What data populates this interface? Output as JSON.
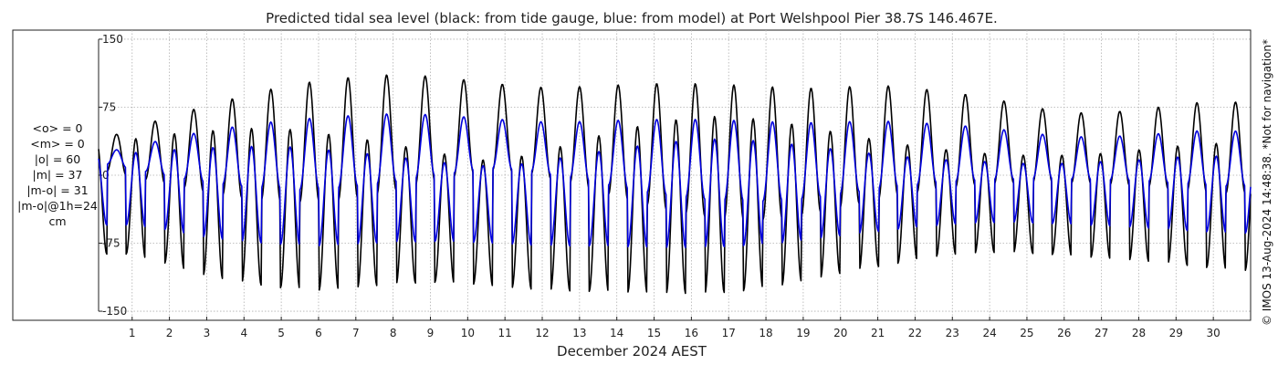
{
  "chart_data": {
    "type": "line",
    "title": "Predicted tidal sea level (black: from tide gauge, blue: from model) at Port Welshpool Pier 38.7S 146.467E.",
    "xlabel": "December 2024 AEST",
    "ylabel": "",
    "xlim": [
      0.1,
      31
    ],
    "ylim": [
      -160,
      160
    ],
    "x_ticks": [
      1,
      2,
      3,
      4,
      5,
      6,
      7,
      8,
      9,
      10,
      11,
      12,
      13,
      14,
      15,
      16,
      17,
      18,
      19,
      20,
      21,
      22,
      23,
      24,
      25,
      26,
      27,
      28,
      29,
      30
    ],
    "y_ticks": [
      150,
      75,
      0,
      -75,
      -150
    ],
    "grid": true,
    "series": [
      {
        "name": "from tide gauge",
        "color": "#000000",
        "wave": {
          "period_days": 0.5175,
          "phase_days": 0.58
        },
        "high_peaks": [
          {
            "day": 0.58,
            "value": 45
          },
          {
            "day": 1.08,
            "value": 53
          },
          {
            "day": 2.12,
            "value": 66
          },
          {
            "day": 3.15,
            "value": 79
          },
          {
            "day": 4.18,
            "value": 89
          },
          {
            "day": 5.2,
            "value": 100
          },
          {
            "day": 6.25,
            "value": 105
          },
          {
            "day": 7.28,
            "value": 110
          },
          {
            "day": 8.3,
            "value": 111
          },
          {
            "day": 9.35,
            "value": 108
          },
          {
            "day": 10.38,
            "value": 103
          },
          {
            "day": 11.4,
            "value": 98
          },
          {
            "day": 12.45,
            "value": 96
          },
          {
            "day": 13.48,
            "value": 99
          },
          {
            "day": 14.5,
            "value": 100
          },
          {
            "day": 15.55,
            "value": 102
          },
          {
            "day": 16.58,
            "value": 100
          },
          {
            "day": 17.6,
            "value": 99
          },
          {
            "day": 18.65,
            "value": 96
          },
          {
            "day": 19.68,
            "value": 96
          },
          {
            "day": 20.7,
            "value": 99
          },
          {
            "day": 21.72,
            "value": 98
          },
          {
            "day": 22.75,
            "value": 92
          },
          {
            "day": 23.8,
            "value": 87
          },
          {
            "day": 24.82,
            "value": 78
          },
          {
            "day": 25.85,
            "value": 70
          },
          {
            "day": 26.88,
            "value": 68
          },
          {
            "day": 27.9,
            "value": 72
          },
          {
            "day": 28.95,
            "value": 77
          },
          {
            "day": 29.98,
            "value": 82
          },
          {
            "day": 30.9,
            "value": 80
          }
        ],
        "low_troughs": [
          {
            "day": 0.85,
            "value": -87
          },
          {
            "day": 1.88,
            "value": -97
          },
          {
            "day": 2.9,
            "value": -110
          },
          {
            "day": 3.92,
            "value": -118
          },
          {
            "day": 4.95,
            "value": -124
          },
          {
            "day": 5.98,
            "value": -127
          },
          {
            "day": 7.0,
            "value": -124
          },
          {
            "day": 8.05,
            "value": -120
          },
          {
            "day": 9.08,
            "value": -118
          },
          {
            "day": 10.1,
            "value": -120
          },
          {
            "day": 11.12,
            "value": -124
          },
          {
            "day": 12.15,
            "value": -127
          },
          {
            "day": 13.18,
            "value": -128
          },
          {
            "day": 14.22,
            "value": -129
          },
          {
            "day": 15.25,
            "value": -130
          },
          {
            "day": 16.28,
            "value": -131
          },
          {
            "day": 17.3,
            "value": -128
          },
          {
            "day": 18.32,
            "value": -122
          },
          {
            "day": 19.35,
            "value": -114
          },
          {
            "day": 20.38,
            "value": -105
          },
          {
            "day": 21.42,
            "value": -98
          },
          {
            "day": 22.45,
            "value": -90
          },
          {
            "day": 23.48,
            "value": -86
          },
          {
            "day": 24.5,
            "value": -85
          },
          {
            "day": 25.52,
            "value": -87
          },
          {
            "day": 26.55,
            "value": -90
          },
          {
            "day": 27.58,
            "value": -93
          },
          {
            "day": 28.6,
            "value": -96
          },
          {
            "day": 29.62,
            "value": -101
          },
          {
            "day": 30.65,
            "value": -105
          }
        ],
        "low_highs": [
          {
            "day": 0.33,
            "value": 35
          },
          {
            "day": 1.35,
            "value": 42
          },
          {
            "day": 2.38,
            "value": 47
          },
          {
            "day": 3.4,
            "value": 50
          },
          {
            "day": 4.42,
            "value": 52
          },
          {
            "day": 5.45,
            "value": 50
          },
          {
            "day": 6.48,
            "value": 44
          },
          {
            "day": 7.5,
            "value": 38
          },
          {
            "day": 8.52,
            "value": 30
          },
          {
            "day": 9.55,
            "value": 22
          },
          {
            "day": 10.58,
            "value": 16
          },
          {
            "day": 11.6,
            "value": 22
          },
          {
            "day": 12.62,
            "value": 33
          },
          {
            "day": 13.65,
            "value": 45
          },
          {
            "day": 14.68,
            "value": 55
          },
          {
            "day": 15.7,
            "value": 62
          },
          {
            "day": 16.72,
            "value": 65
          },
          {
            "day": 17.75,
            "value": 62
          },
          {
            "day": 18.78,
            "value": 56
          },
          {
            "day": 19.8,
            "value": 48
          },
          {
            "day": 20.82,
            "value": 40
          },
          {
            "day": 21.85,
            "value": 33
          },
          {
            "day": 22.88,
            "value": 28
          },
          {
            "day": 23.9,
            "value": 24
          },
          {
            "day": 24.92,
            "value": 22
          },
          {
            "day": 25.95,
            "value": 22
          },
          {
            "day": 26.98,
            "value": 24
          },
          {
            "day": 28.0,
            "value": 28
          },
          {
            "day": 29.02,
            "value": 32
          },
          {
            "day": 30.05,
            "value": 35
          }
        ],
        "high_lows": [
          {
            "day": 0.35,
            "value": 4
          },
          {
            "day": 1.38,
            "value": -5
          },
          {
            "day": 2.4,
            "value": -14
          },
          {
            "day": 3.42,
            "value": -22
          },
          {
            "day": 4.45,
            "value": -28
          },
          {
            "day": 5.48,
            "value": -30
          },
          {
            "day": 6.5,
            "value": -28
          },
          {
            "day": 7.52,
            "value": -22
          },
          {
            "day": 8.55,
            "value": -12
          },
          {
            "day": 9.58,
            "value": -2
          },
          {
            "day": 10.6,
            "value": 6
          },
          {
            "day": 11.62,
            "value": 2
          },
          {
            "day": 12.65,
            "value": -8
          },
          {
            "day": 13.68,
            "value": -20
          },
          {
            "day": 14.7,
            "value": -32
          },
          {
            "day": 15.72,
            "value": -42
          },
          {
            "day": 16.75,
            "value": -48
          },
          {
            "day": 17.78,
            "value": -50
          },
          {
            "day": 18.8,
            "value": -46
          },
          {
            "day": 19.82,
            "value": -38
          },
          {
            "day": 20.85,
            "value": -28
          },
          {
            "day": 21.88,
            "value": -20
          },
          {
            "day": 22.9,
            "value": -14
          },
          {
            "day": 23.92,
            "value": -10
          },
          {
            "day": 24.95,
            "value": -8
          },
          {
            "day": 25.98,
            "value": -8
          },
          {
            "day": 27.0,
            "value": -10
          },
          {
            "day": 28.02,
            "value": -12
          },
          {
            "day": 29.05,
            "value": -16
          },
          {
            "day": 30.08,
            "value": -20
          }
        ]
      },
      {
        "name": "from model",
        "color": "#0000dd",
        "wave": {
          "period_days": 0.5175,
          "phase_days": 0.58
        },
        "high_peaks": [
          {
            "day": 0.58,
            "value": 28
          },
          {
            "day": 1.08,
            "value": 32
          },
          {
            "day": 2.12,
            "value": 42
          },
          {
            "day": 3.15,
            "value": 50
          },
          {
            "day": 4.18,
            "value": 56
          },
          {
            "day": 5.2,
            "value": 61
          },
          {
            "day": 6.25,
            "value": 64
          },
          {
            "day": 7.28,
            "value": 67
          },
          {
            "day": 8.3,
            "value": 68
          },
          {
            "day": 9.35,
            "value": 66
          },
          {
            "day": 10.38,
            "value": 63
          },
          {
            "day": 11.4,
            "value": 60
          },
          {
            "day": 12.45,
            "value": 58
          },
          {
            "day": 13.48,
            "value": 60
          },
          {
            "day": 14.5,
            "value": 61
          },
          {
            "day": 15.55,
            "value": 62
          },
          {
            "day": 16.58,
            "value": 61
          },
          {
            "day": 17.6,
            "value": 60
          },
          {
            "day": 18.65,
            "value": 58
          },
          {
            "day": 19.68,
            "value": 58
          },
          {
            "day": 20.7,
            "value": 60
          },
          {
            "day": 21.72,
            "value": 59
          },
          {
            "day": 22.75,
            "value": 56
          },
          {
            "day": 23.8,
            "value": 53
          },
          {
            "day": 24.82,
            "value": 48
          },
          {
            "day": 25.85,
            "value": 43
          },
          {
            "day": 26.88,
            "value": 42
          },
          {
            "day": 27.9,
            "value": 44
          },
          {
            "day": 28.95,
            "value": 47
          },
          {
            "day": 29.98,
            "value": 50
          },
          {
            "day": 30.9,
            "value": 48
          }
        ],
        "low_troughs": [
          {
            "day": 0.85,
            "value": -55
          },
          {
            "day": 1.88,
            "value": -60
          },
          {
            "day": 2.9,
            "value": -68
          },
          {
            "day": 3.92,
            "value": -73
          },
          {
            "day": 4.95,
            "value": -76
          },
          {
            "day": 5.98,
            "value": -78
          },
          {
            "day": 7.0,
            "value": -76
          },
          {
            "day": 8.05,
            "value": -74
          },
          {
            "day": 9.08,
            "value": -73
          },
          {
            "day": 10.1,
            "value": -74
          },
          {
            "day": 11.12,
            "value": -76
          },
          {
            "day": 12.15,
            "value": -78
          },
          {
            "day": 13.18,
            "value": -78
          },
          {
            "day": 14.22,
            "value": -79
          },
          {
            "day": 15.25,
            "value": -80
          },
          {
            "day": 16.28,
            "value": -80
          },
          {
            "day": 17.3,
            "value": -78
          },
          {
            "day": 18.32,
            "value": -75
          },
          {
            "day": 19.35,
            "value": -70
          },
          {
            "day": 20.38,
            "value": -65
          },
          {
            "day": 21.42,
            "value": -60
          },
          {
            "day": 22.45,
            "value": -56
          },
          {
            "day": 23.48,
            "value": -53
          },
          {
            "day": 24.5,
            "value": -52
          },
          {
            "day": 25.52,
            "value": -53
          },
          {
            "day": 26.55,
            "value": -55
          },
          {
            "day": 27.58,
            "value": -57
          },
          {
            "day": 28.6,
            "value": -59
          },
          {
            "day": 29.62,
            "value": -62
          },
          {
            "day": 30.65,
            "value": -64
          }
        ],
        "low_highs": [
          {
            "day": 0.33,
            "value": 22
          },
          {
            "day": 1.35,
            "value": 26
          },
          {
            "day": 2.38,
            "value": 29
          },
          {
            "day": 3.4,
            "value": 31
          },
          {
            "day": 4.42,
            "value": 32
          },
          {
            "day": 5.45,
            "value": 31
          },
          {
            "day": 6.48,
            "value": 27
          },
          {
            "day": 7.5,
            "value": 23
          },
          {
            "day": 8.52,
            "value": 18
          },
          {
            "day": 9.55,
            "value": 13
          },
          {
            "day": 10.58,
            "value": 10
          },
          {
            "day": 11.6,
            "value": 13
          },
          {
            "day": 12.62,
            "value": 20
          },
          {
            "day": 13.65,
            "value": 27
          },
          {
            "day": 14.68,
            "value": 33
          },
          {
            "day": 15.7,
            "value": 38
          },
          {
            "day": 16.72,
            "value": 40
          },
          {
            "day": 17.75,
            "value": 38
          },
          {
            "day": 18.78,
            "value": 34
          },
          {
            "day": 19.8,
            "value": 29
          },
          {
            "day": 20.82,
            "value": 24
          },
          {
            "day": 21.85,
            "value": 20
          },
          {
            "day": 22.88,
            "value": 17
          },
          {
            "day": 23.9,
            "value": 15
          },
          {
            "day": 24.92,
            "value": 13
          },
          {
            "day": 25.95,
            "value": 13
          },
          {
            "day": 26.98,
            "value": 15
          },
          {
            "day": 28.0,
            "value": 17
          },
          {
            "day": 29.02,
            "value": 20
          },
          {
            "day": 30.05,
            "value": 21
          }
        ],
        "high_lows": [
          {
            "day": 0.35,
            "value": 12
          },
          {
            "day": 1.38,
            "value": 4
          },
          {
            "day": 2.4,
            "value": -4
          },
          {
            "day": 3.42,
            "value": -10
          },
          {
            "day": 4.45,
            "value": -14
          },
          {
            "day": 5.48,
            "value": -16
          },
          {
            "day": 6.5,
            "value": -14
          },
          {
            "day": 7.52,
            "value": -10
          },
          {
            "day": 8.55,
            "value": -4
          },
          {
            "day": 9.58,
            "value": 2
          },
          {
            "day": 10.6,
            "value": 8
          },
          {
            "day": 11.62,
            "value": 5
          },
          {
            "day": 12.65,
            "value": -2
          },
          {
            "day": 13.68,
            "value": -10
          },
          {
            "day": 14.7,
            "value": -18
          },
          {
            "day": 15.72,
            "value": -24
          },
          {
            "day": 16.75,
            "value": -28
          },
          {
            "day": 17.78,
            "value": -29
          },
          {
            "day": 18.8,
            "value": -27
          },
          {
            "day": 19.82,
            "value": -22
          },
          {
            "day": 20.85,
            "value": -16
          },
          {
            "day": 21.88,
            "value": -11
          },
          {
            "day": 22.9,
            "value": -7
          },
          {
            "day": 23.92,
            "value": -5
          },
          {
            "day": 24.95,
            "value": -4
          },
          {
            "day": 25.98,
            "value": -4
          },
          {
            "day": 27.0,
            "value": -5
          },
          {
            "day": 28.02,
            "value": -6
          },
          {
            "day": 29.05,
            "value": -9
          },
          {
            "day": 30.08,
            "value": -12
          }
        ]
      }
    ]
  },
  "stats": [
    "<o> = 0",
    "<m> = 0",
    "|o| = 60",
    "|m| = 37",
    "|m-o| = 31",
    "|m-o|@1h=24",
    "cm"
  ],
  "copyright": "© IMOS 13-Aug-2024 14:48:38. *Not for navigation*",
  "colors": {
    "gauge": "#000000",
    "model": "#0000dd",
    "grid": "#b0b0b0"
  }
}
